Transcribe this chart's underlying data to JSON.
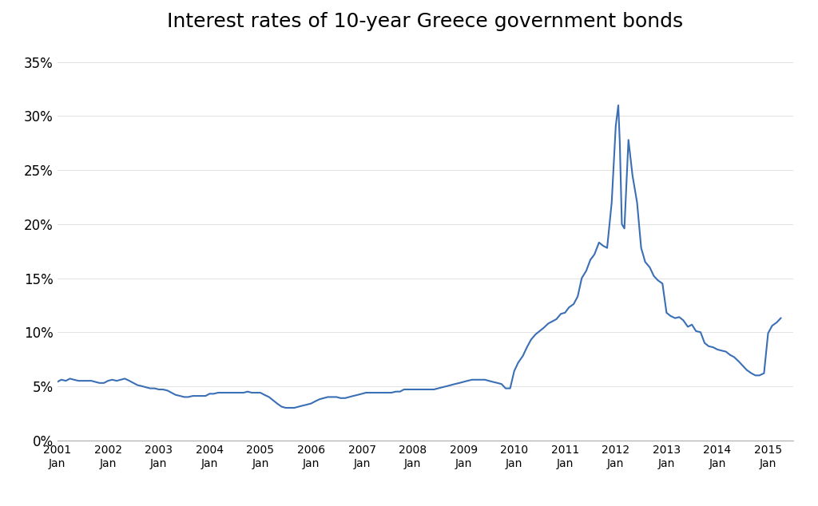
{
  "title": "Interest rates of 10-year Greece government bonds",
  "title_fontsize": 18,
  "line_color": "#3B6FB5",
  "background_color": "#FFFFFF",
  "ylim": [
    0,
    0.37
  ],
  "yticks": [
    0.0,
    0.05,
    0.1,
    0.15,
    0.2,
    0.25,
    0.3,
    0.35
  ],
  "ytick_labels": [
    "0%",
    "5%",
    "10%",
    "15%",
    "20%",
    "25%",
    "30%",
    "35%"
  ],
  "xtick_positions": [
    2001,
    2002,
    2003,
    2004,
    2005,
    2006,
    2007,
    2008,
    2009,
    2010,
    2011,
    2012,
    2013,
    2014,
    2015
  ],
  "xtick_labels": [
    "2001\nJan",
    "2002\nJan",
    "2003\nJan",
    "2004\nJan",
    "2005\nJan",
    "2006\nJan",
    "2007\nJan",
    "2008\nJan",
    "2009\nJan",
    "2010\nJan",
    "2011\nJan",
    "2012\nJan",
    "2013\nJan",
    "2014\nJan",
    "2015\nJan"
  ],
  "xlim": [
    2001.0,
    2015.5
  ],
  "data": {
    "dates": [
      2001.0,
      2001.08,
      2001.17,
      2001.25,
      2001.33,
      2001.42,
      2001.5,
      2001.58,
      2001.67,
      2001.75,
      2001.83,
      2001.92,
      2002.0,
      2002.08,
      2002.17,
      2002.25,
      2002.33,
      2002.42,
      2002.5,
      2002.58,
      2002.67,
      2002.75,
      2002.83,
      2002.92,
      2003.0,
      2003.08,
      2003.17,
      2003.25,
      2003.33,
      2003.42,
      2003.5,
      2003.58,
      2003.67,
      2003.75,
      2003.83,
      2003.92,
      2004.0,
      2004.08,
      2004.17,
      2004.25,
      2004.33,
      2004.42,
      2004.5,
      2004.58,
      2004.67,
      2004.75,
      2004.83,
      2004.92,
      2005.0,
      2005.08,
      2005.17,
      2005.25,
      2005.33,
      2005.42,
      2005.5,
      2005.58,
      2005.67,
      2005.75,
      2005.83,
      2005.92,
      2006.0,
      2006.08,
      2006.17,
      2006.25,
      2006.33,
      2006.42,
      2006.5,
      2006.58,
      2006.67,
      2006.75,
      2006.83,
      2006.92,
      2007.0,
      2007.08,
      2007.17,
      2007.25,
      2007.33,
      2007.42,
      2007.5,
      2007.58,
      2007.67,
      2007.75,
      2007.83,
      2007.92,
      2008.0,
      2008.08,
      2008.17,
      2008.25,
      2008.33,
      2008.42,
      2008.5,
      2008.58,
      2008.67,
      2008.75,
      2008.83,
      2008.92,
      2009.0,
      2009.08,
      2009.17,
      2009.25,
      2009.33,
      2009.42,
      2009.5,
      2009.58,
      2009.67,
      2009.75,
      2009.83,
      2009.92,
      2010.0,
      2010.08,
      2010.17,
      2010.25,
      2010.33,
      2010.42,
      2010.5,
      2010.58,
      2010.67,
      2010.75,
      2010.83,
      2010.92,
      2011.0,
      2011.08,
      2011.17,
      2011.25,
      2011.33,
      2011.42,
      2011.5,
      2011.58,
      2011.67,
      2011.75,
      2011.83,
      2011.92,
      2012.0,
      2012.05,
      2012.08,
      2012.12,
      2012.17,
      2012.25,
      2012.33,
      2012.42,
      2012.5,
      2012.58,
      2012.67,
      2012.75,
      2012.83,
      2012.92,
      2013.0,
      2013.08,
      2013.17,
      2013.25,
      2013.33,
      2013.42,
      2013.5,
      2013.58,
      2013.67,
      2013.75,
      2013.83,
      2013.92,
      2014.0,
      2014.08,
      2014.17,
      2014.25,
      2014.33,
      2014.42,
      2014.5,
      2014.58,
      2014.67,
      2014.75,
      2014.83,
      2014.92,
      2015.0,
      2015.08,
      2015.17,
      2015.25
    ],
    "values": [
      0.054,
      0.056,
      0.055,
      0.057,
      0.056,
      0.055,
      0.055,
      0.055,
      0.055,
      0.054,
      0.053,
      0.053,
      0.055,
      0.056,
      0.055,
      0.056,
      0.057,
      0.055,
      0.053,
      0.051,
      0.05,
      0.049,
      0.048,
      0.048,
      0.047,
      0.047,
      0.046,
      0.044,
      0.042,
      0.041,
      0.04,
      0.04,
      0.041,
      0.041,
      0.041,
      0.041,
      0.043,
      0.043,
      0.044,
      0.044,
      0.044,
      0.044,
      0.044,
      0.044,
      0.044,
      0.045,
      0.044,
      0.044,
      0.044,
      0.042,
      0.04,
      0.037,
      0.034,
      0.031,
      0.03,
      0.03,
      0.03,
      0.031,
      0.032,
      0.033,
      0.034,
      0.036,
      0.038,
      0.039,
      0.04,
      0.04,
      0.04,
      0.039,
      0.039,
      0.04,
      0.041,
      0.042,
      0.043,
      0.044,
      0.044,
      0.044,
      0.044,
      0.044,
      0.044,
      0.044,
      0.045,
      0.045,
      0.047,
      0.047,
      0.047,
      0.047,
      0.047,
      0.047,
      0.047,
      0.047,
      0.048,
      0.049,
      0.05,
      0.051,
      0.052,
      0.053,
      0.054,
      0.055,
      0.056,
      0.056,
      0.056,
      0.056,
      0.055,
      0.054,
      0.053,
      0.052,
      0.048,
      0.048,
      0.064,
      0.072,
      0.078,
      0.086,
      0.093,
      0.098,
      0.101,
      0.104,
      0.108,
      0.11,
      0.112,
      0.117,
      0.118,
      0.123,
      0.126,
      0.133,
      0.15,
      0.157,
      0.167,
      0.172,
      0.183,
      0.18,
      0.178,
      0.22,
      0.291,
      0.31,
      0.275,
      0.2,
      0.196,
      0.278,
      0.245,
      0.22,
      0.178,
      0.165,
      0.16,
      0.152,
      0.148,
      0.145,
      0.118,
      0.115,
      0.113,
      0.114,
      0.111,
      0.105,
      0.107,
      0.101,
      0.1,
      0.09,
      0.087,
      0.086,
      0.084,
      0.083,
      0.082,
      0.079,
      0.077,
      0.073,
      0.069,
      0.065,
      0.062,
      0.06,
      0.06,
      0.062,
      0.099,
      0.106,
      0.109,
      0.113
    ]
  }
}
